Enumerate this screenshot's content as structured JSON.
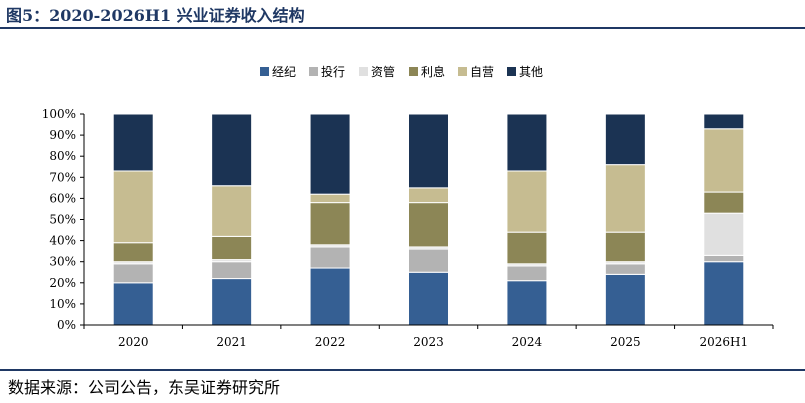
{
  "title": "图5：2020-2026H1 兴业证券收入结构",
  "source": "数据来源：公司公告，东吴证券研究所",
  "colors": {
    "经纪": "#355f93",
    "投行": "#b3b3b3",
    "资管": "#e0e0e0",
    "利息": "#8c8656",
    "自营": "#c6bc91",
    "其他": "#1b3353",
    "title": "#1f3864"
  },
  "chart_data": {
    "type": "bar",
    "stacked": true,
    "categories": [
      "2020",
      "2021",
      "2022",
      "2023",
      "2024",
      "2025",
      "2026H1"
    ],
    "series": [
      {
        "name": "经纪",
        "values": [
          20,
          22,
          27,
          25,
          21,
          24,
          30
        ]
      },
      {
        "name": "投行",
        "values": [
          9,
          8,
          10,
          11,
          7,
          5,
          3
        ]
      },
      {
        "name": "资管",
        "values": [
          1,
          1,
          1,
          1,
          1,
          1,
          20
        ]
      },
      {
        "name": "利息",
        "values": [
          9,
          11,
          20,
          21,
          15,
          14,
          10
        ]
      },
      {
        "name": "自营",
        "values": [
          34,
          24,
          4,
          7,
          29,
          32,
          30
        ]
      },
      {
        "name": "其他",
        "values": [
          27,
          34,
          38,
          35,
          27,
          24,
          7
        ]
      }
    ],
    "yticks": [
      "0%",
      "10%",
      "20%",
      "30%",
      "40%",
      "50%",
      "60%",
      "70%",
      "80%",
      "90%",
      "100%"
    ],
    "ylim": [
      0,
      100
    ],
    "legend": "top-center",
    "grid": false
  }
}
